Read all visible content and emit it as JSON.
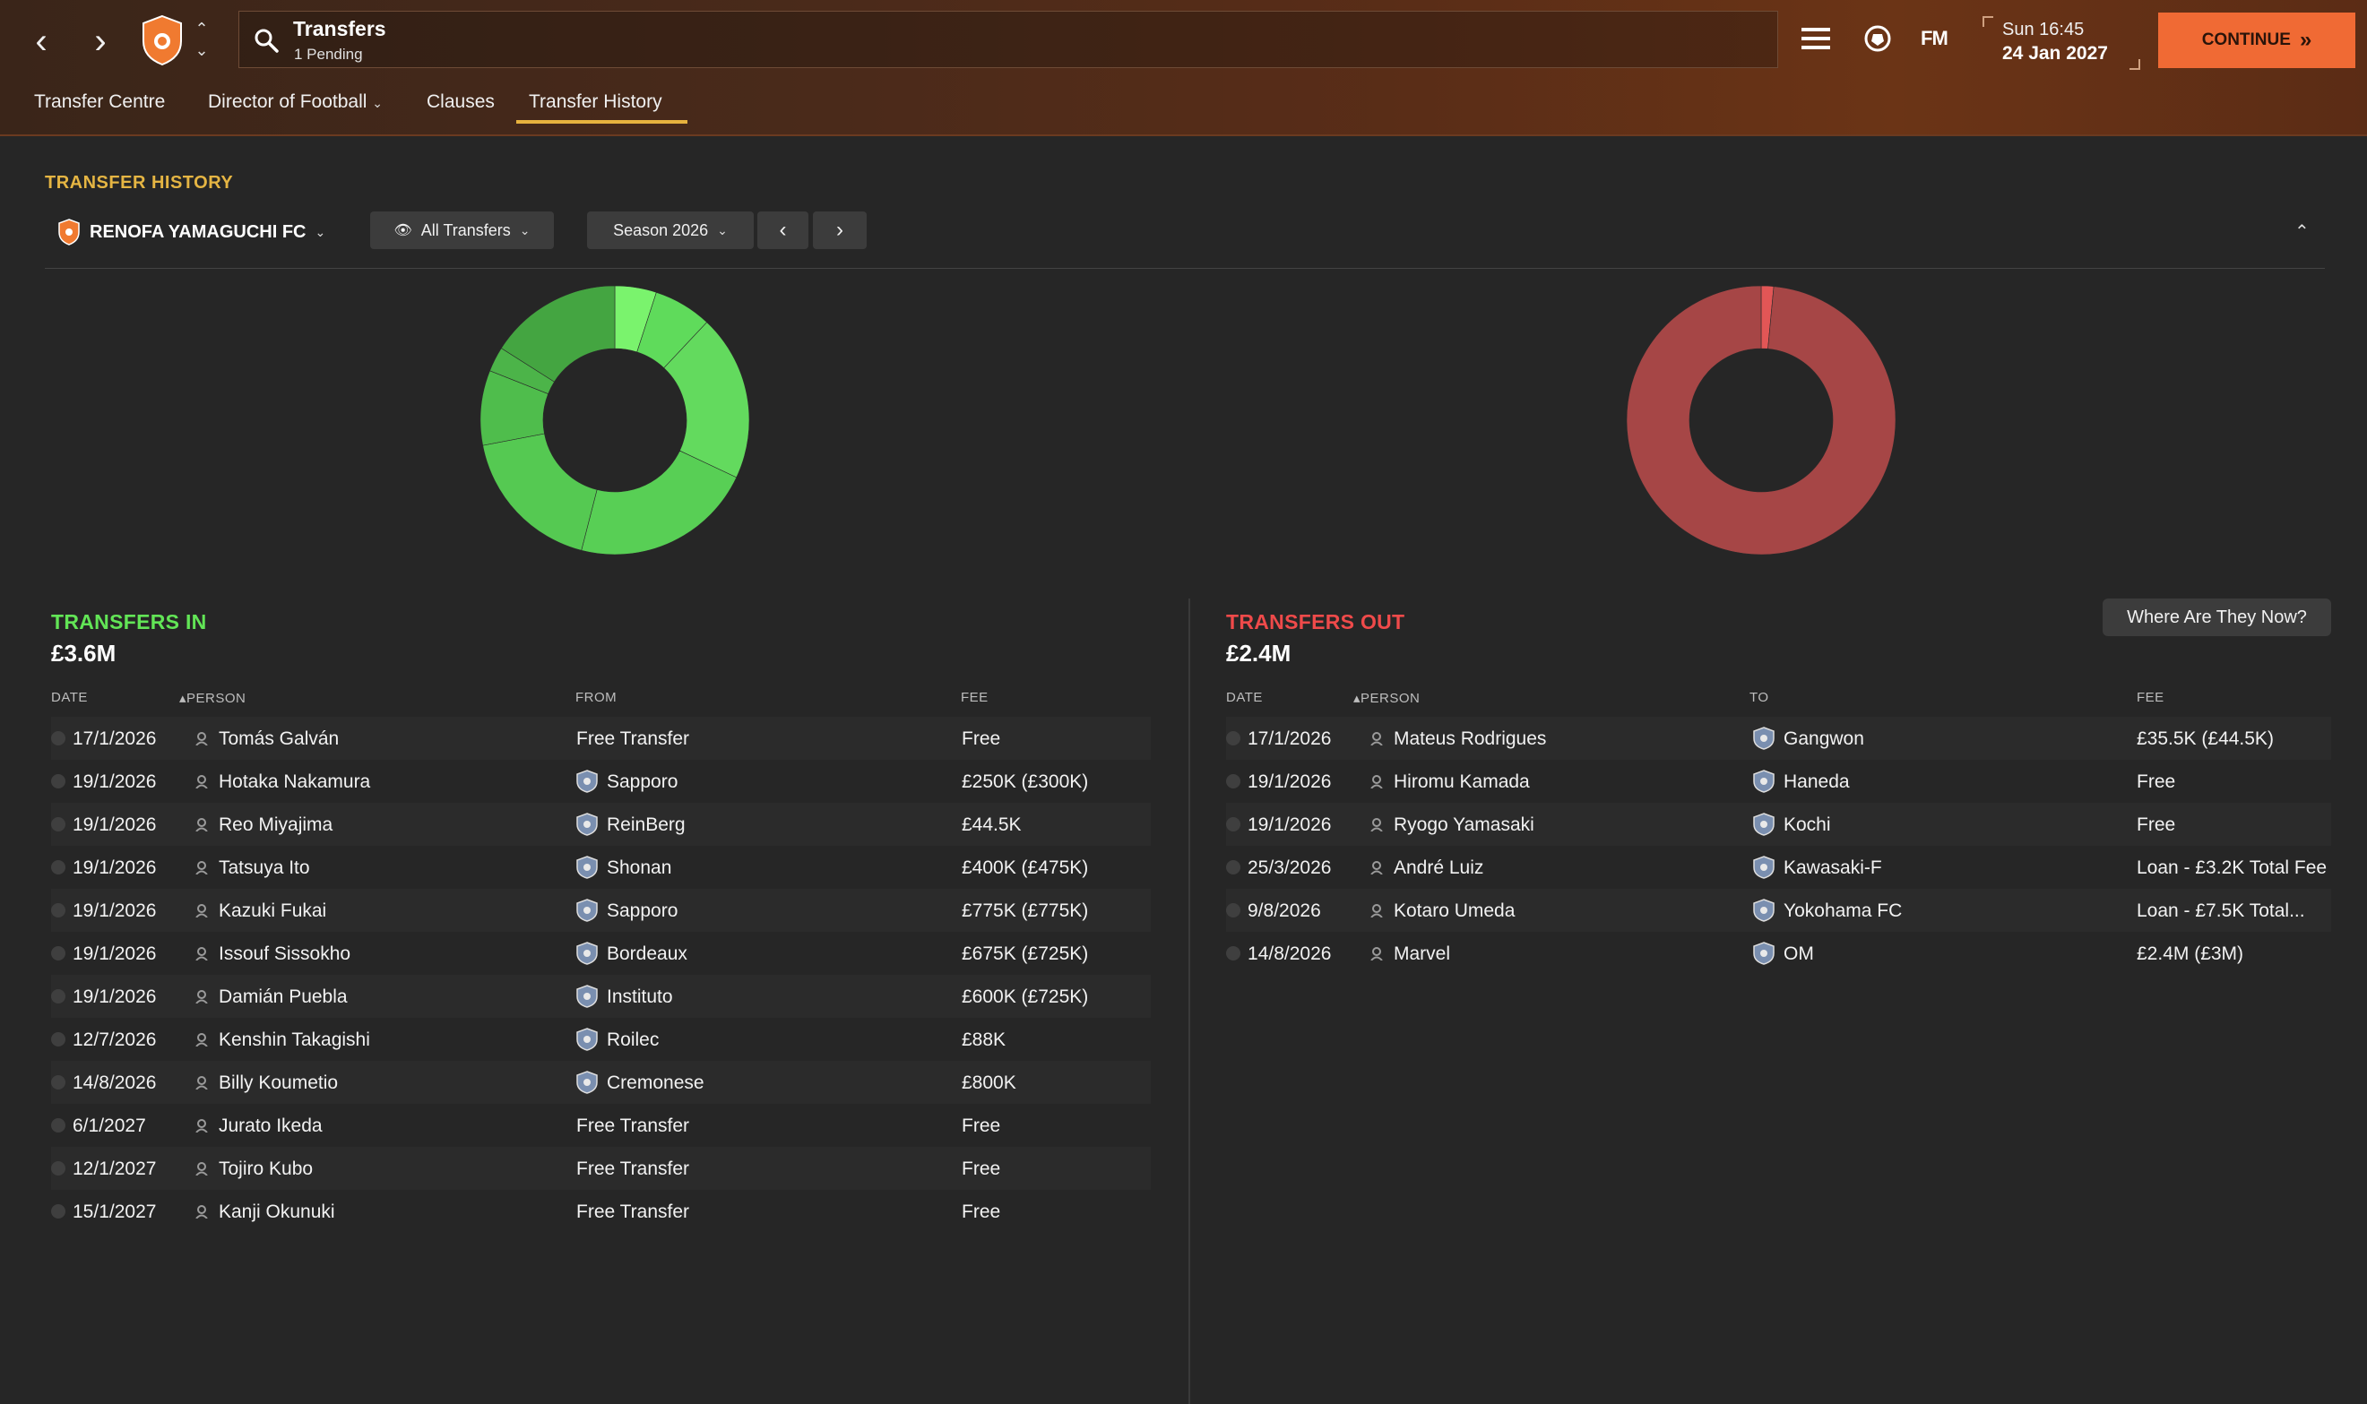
{
  "header": {
    "search_title": "Transfers",
    "search_sub": "1 Pending",
    "fm_label": "FM",
    "date_time": "Sun 16:45",
    "date_day": "24 Jan 2027",
    "continue_label": "CONTINUE",
    "brand_color": "#f06a34"
  },
  "tabs": [
    {
      "label": "Transfer Centre"
    },
    {
      "label": "Director of Football"
    },
    {
      "label": "Clauses"
    },
    {
      "label": "Transfer History",
      "active": true
    }
  ],
  "section": {
    "title": "TRANSFER HISTORY",
    "club": "RENOFA YAMAGUCHI FC",
    "filter": "All Transfers",
    "season": "Season 2026"
  },
  "donut_in": {
    "color": "#5bd35b",
    "slices": [
      5,
      7,
      20,
      22,
      18,
      9,
      3,
      16
    ]
  },
  "donut_out": {
    "color": "#a64646",
    "highlight": "#e25656",
    "slices": [
      1.5,
      98.5
    ]
  },
  "transfers_in": {
    "title": "TRANSFERS IN",
    "total": "£3.6M",
    "columns": {
      "date": "DATE",
      "person": "PERSON",
      "from": "FROM",
      "fee": "FEE"
    },
    "rows": [
      {
        "date": "17/1/2026",
        "person": "Tomás Galván",
        "club": "Free Transfer",
        "fee": "Free",
        "badge": ""
      },
      {
        "date": "19/1/2026",
        "person": "Hotaka Nakamura",
        "club": "Sapporo",
        "fee": "£250K (£300K)",
        "badge": "sapporo-badge-icon"
      },
      {
        "date": "19/1/2026",
        "person": "Reo Miyajima",
        "club": "ReinBerg",
        "fee": "£44.5K",
        "badge": "reinberg-badge-icon"
      },
      {
        "date": "19/1/2026",
        "person": "Tatsuya Ito",
        "club": "Shonan",
        "fee": "£400K (£475K)",
        "badge": "shonan-badge-icon"
      },
      {
        "date": "19/1/2026",
        "person": "Kazuki Fukai",
        "club": "Sapporo",
        "fee": "£775K (£775K)",
        "badge": "sapporo-badge-icon"
      },
      {
        "date": "19/1/2026",
        "person": "Issouf Sissokho",
        "club": "Bordeaux",
        "fee": "£675K (£725K)",
        "badge": "bordeaux-badge-icon"
      },
      {
        "date": "19/1/2026",
        "person": "Damián Puebla",
        "club": "Instituto",
        "fee": "£600K (£725K)",
        "badge": "instituto-badge-icon"
      },
      {
        "date": "12/7/2026",
        "person": "Kenshin Takagishi",
        "club": "Roilec",
        "fee": "£88K",
        "badge": "roilec-badge-icon"
      },
      {
        "date": "14/8/2026",
        "person": "Billy Koumetio",
        "club": "Cremonese",
        "fee": "£800K",
        "badge": "cremonese-badge-icon"
      },
      {
        "date": "6/1/2027",
        "person": "Jurato Ikeda",
        "club": "Free Transfer",
        "fee": "Free",
        "badge": ""
      },
      {
        "date": "12/1/2027",
        "person": "Tojiro Kubo",
        "club": "Free Transfer",
        "fee": "Free",
        "badge": ""
      },
      {
        "date": "15/1/2027",
        "person": "Kanji Okunuki",
        "club": "Free Transfer",
        "fee": "Free",
        "badge": ""
      }
    ]
  },
  "transfers_out": {
    "title": "TRANSFERS OUT",
    "total": "£2.4M",
    "where_btn": "Where Are They Now?",
    "columns": {
      "date": "DATE",
      "person": "PERSON",
      "to": "TO",
      "fee": "FEE"
    },
    "rows": [
      {
        "date": "17/1/2026",
        "person": "Mateus Rodrigues",
        "club": "Gangwon",
        "fee": "£35.5K (£44.5K)",
        "badge": "gangwon-badge-icon"
      },
      {
        "date": "19/1/2026",
        "person": "Hiromu Kamada",
        "club": "Haneda",
        "fee": "Free",
        "badge": "haneda-badge-icon"
      },
      {
        "date": "19/1/2026",
        "person": "Ryogo Yamasaki",
        "club": "Kochi",
        "fee": "Free",
        "badge": "kochi-badge-icon"
      },
      {
        "date": "25/3/2026",
        "person": "André Luiz",
        "club": "Kawasaki-F",
        "fee": "Loan - £3.2K Total Fee",
        "badge": "kawasaki-badge-icon"
      },
      {
        "date": "9/8/2026",
        "person": "Kotaro Umeda",
        "club": "Yokohama FC",
        "fee": "Loan - £7.5K Total...",
        "badge": "yokohama-badge-icon"
      },
      {
        "date": "14/8/2026",
        "person": "Marvel",
        "club": "OM",
        "fee": "£2.4M (£3M)",
        "badge": "om-badge-icon"
      }
    ]
  }
}
